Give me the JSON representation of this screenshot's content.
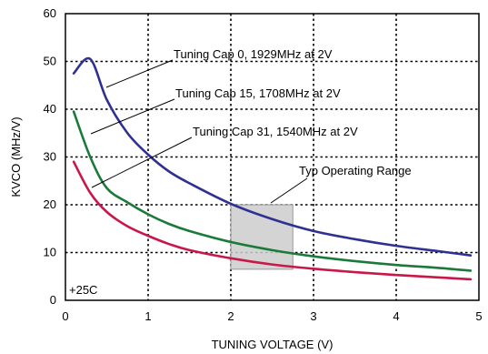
{
  "chart_data": {
    "type": "line",
    "title": "",
    "xlabel": "TUNING VOLTAGE (V)",
    "ylabel": "KVCO (MHz/V)",
    "xlim": [
      0,
      5
    ],
    "ylim": [
      0,
      60
    ],
    "xticks": [
      0,
      1,
      2,
      3,
      4,
      5
    ],
    "yticks": [
      0,
      10,
      20,
      30,
      40,
      50,
      60
    ],
    "grid": true,
    "condition_label": "+25C",
    "series": [
      {
        "name": "Tuning Cap 0, 1929MHz at 2V",
        "color": "#2e3192",
        "x": [
          0.1,
          0.3,
          0.5,
          0.75,
          1.0,
          1.25,
          1.5,
          2.0,
          2.5,
          3.0,
          3.5,
          4.0,
          4.5,
          4.9
        ],
        "y": [
          47.5,
          50.5,
          42,
          35,
          30.5,
          27,
          24.5,
          20.2,
          17,
          14.5,
          12.8,
          11.4,
          10.3,
          9.4
        ]
      },
      {
        "name": "Tuning Cap 15, 1708MHz at 2V",
        "color": "#1a7a3a",
        "x": [
          0.1,
          0.3,
          0.5,
          0.75,
          1.0,
          1.25,
          1.5,
          2.0,
          2.5,
          3.0,
          3.5,
          4.0,
          4.5,
          4.9
        ],
        "y": [
          39.5,
          30,
          23.5,
          20.5,
          18,
          16,
          14.5,
          12.2,
          10.5,
          9.2,
          8.2,
          7.4,
          6.8,
          6.2
        ]
      },
      {
        "name": "Tuning Cap 31, 1540MHz at 2V",
        "color": "#c8184a",
        "x": [
          0.1,
          0.3,
          0.5,
          0.75,
          1.0,
          1.25,
          1.5,
          2.0,
          2.5,
          3.0,
          3.5,
          4.0,
          4.5,
          4.9
        ],
        "y": [
          29,
          22.5,
          18.5,
          15.5,
          13.5,
          11.8,
          10.5,
          8.8,
          7.5,
          6.6,
          5.9,
          5.3,
          4.8,
          4.4
        ]
      }
    ],
    "shaded_region": {
      "label": "Typ Operating Range",
      "x": [
        2.0,
        2.75
      ],
      "y": [
        6.5,
        20
      ],
      "color": "#cccccc"
    }
  }
}
